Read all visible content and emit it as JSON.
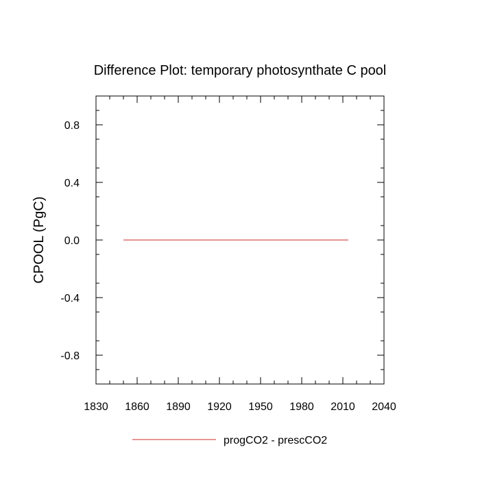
{
  "chart_data": {
    "type": "line",
    "title": "Difference Plot: temporary photosynthate C pool",
    "xlabel": "",
    "ylabel": "CPOOL  (PgC)",
    "xlim": [
      1830,
      2040
    ],
    "ylim": [
      -1.0,
      1.0
    ],
    "x_ticks": [
      1830,
      1860,
      1890,
      1920,
      1950,
      1980,
      2010,
      2040
    ],
    "x_tick_labels": [
      "1830",
      "1860",
      "1890",
      "1920",
      "1950",
      "1980",
      "2010",
      "2040"
    ],
    "y_ticks": [
      -0.8,
      -0.4,
      0.0,
      0.4,
      0.8
    ],
    "y_tick_labels": [
      "-0.8",
      "-0.4",
      "0.0",
      "0.4",
      "0.8"
    ],
    "grid": false,
    "legend_position": "bottom",
    "series": [
      {
        "name": "progCO2 - prescCO2",
        "color": "#e07070",
        "x": [
          1850,
          2014
        ],
        "y": [
          0.0,
          0.0
        ]
      }
    ]
  }
}
